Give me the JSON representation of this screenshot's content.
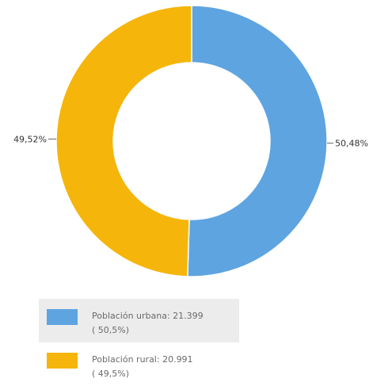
{
  "chart_data": {
    "type": "pie",
    "donut": true,
    "slices": [
      {
        "name": "Población urbana",
        "value": 21399,
        "percent": 50.48,
        "label": "50,48%",
        "color": "#5ea4e0"
      },
      {
        "name": "Población rural",
        "value": 20991,
        "percent": 49.52,
        "label": "49,52%",
        "color": "#f5b50a"
      }
    ],
    "legend": {
      "placement": "bottom-left",
      "items": [
        {
          "line1": "Población urbana:  21.399",
          "line2": "( 50,5%)",
          "color": "#5ea4e0"
        },
        {
          "line1": "Población rural:  20.991",
          "line2": "( 49,5%)",
          "color": "#f5b50a"
        }
      ]
    }
  }
}
